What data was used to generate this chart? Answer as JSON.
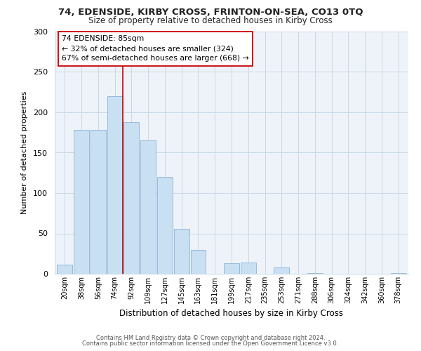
{
  "title1": "74, EDENSIDE, KIRBY CROSS, FRINTON-ON-SEA, CO13 0TQ",
  "title2": "Size of property relative to detached houses in Kirby Cross",
  "xlabel": "Distribution of detached houses by size in Kirby Cross",
  "ylabel": "Number of detached properties",
  "bin_labels": [
    "20sqm",
    "38sqm",
    "56sqm",
    "74sqm",
    "92sqm",
    "109sqm",
    "127sqm",
    "145sqm",
    "163sqm",
    "181sqm",
    "199sqm",
    "217sqm",
    "235sqm",
    "253sqm",
    "271sqm",
    "288sqm",
    "306sqm",
    "324sqm",
    "342sqm",
    "360sqm",
    "378sqm"
  ],
  "bin_values": [
    11,
    178,
    178,
    220,
    188,
    165,
    120,
    56,
    30,
    0,
    13,
    14,
    0,
    8,
    0,
    1,
    0,
    0,
    0,
    0,
    1
  ],
  "bar_color": "#c9dff2",
  "bar_edge_color": "#8ab4d8",
  "vline_x_idx": 4,
  "vline_color": "#cc0000",
  "annotation_title": "74 EDENSIDE: 85sqm",
  "annotation_line1": "← 32% of detached houses are smaller (324)",
  "annotation_line2": "67% of semi-detached houses are larger (668) →",
  "annotation_box_color": "#ffffff",
  "annotation_box_edge": "#cc0000",
  "ylim": [
    0,
    300
  ],
  "yticks": [
    0,
    50,
    100,
    150,
    200,
    250,
    300
  ],
  "footer1": "Contains HM Land Registry data © Crown copyright and database right 2024.",
  "footer2": "Contains public sector information licensed under the Open Government Licence v3.0.",
  "bg_color": "#eef3f9",
  "plot_bg_color": "#eef3f9",
  "grid_color": "#c8d8e8",
  "spine_color": "#c8d8e8"
}
